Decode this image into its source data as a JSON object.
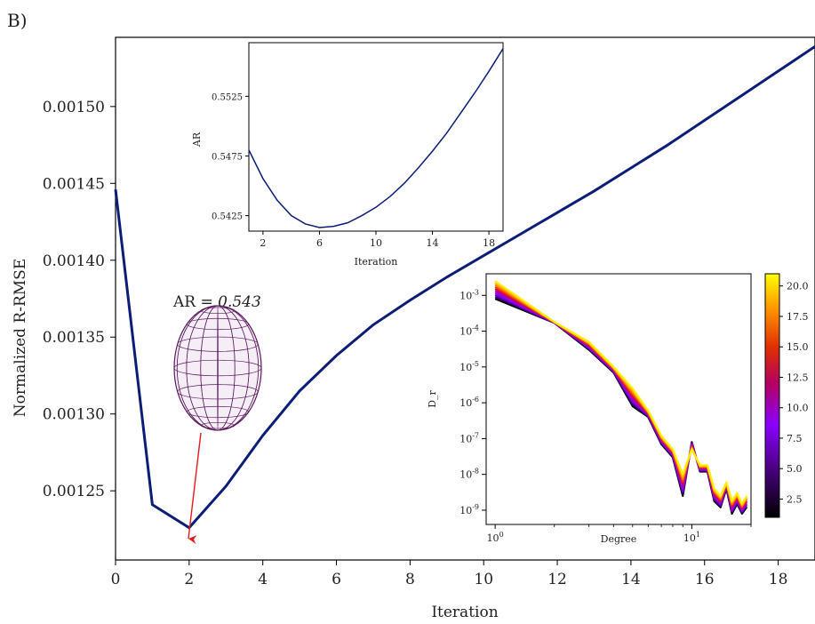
{
  "panel_label": "B)",
  "annotation": {
    "prefix": "AR = ",
    "value": "0.543"
  },
  "colors": {
    "main_line": "#0c1d78",
    "arrow": "#e41a1c",
    "ellipsoid": "#5a1a5e"
  },
  "chart_data": [
    {
      "id": "main",
      "type": "line",
      "xlabel": "Iteration",
      "ylabel": "Normalized R-RMSE",
      "xlim": [
        0,
        19
      ],
      "ylim": [
        0.001205,
        0.001545
      ],
      "xticks": [
        "0",
        "2",
        "4",
        "6",
        "8",
        "10",
        "12",
        "14",
        "16",
        "18"
      ],
      "yticks": [
        "0.00125",
        "0.00130",
        "0.00135",
        "0.00140",
        "0.00145",
        "0.00150"
      ],
      "grid": false,
      "x": [
        0,
        1,
        2,
        3,
        4,
        5,
        6,
        7,
        8,
        9,
        10,
        11,
        12,
        13,
        14,
        15,
        16,
        17,
        18,
        19
      ],
      "y": [
        0.001446,
        0.001241,
        0.001226,
        0.001253,
        0.001286,
        0.001315,
        0.001338,
        0.001358,
        0.001374,
        0.001389,
        0.001403,
        0.001417,
        0.001431,
        0.001445,
        0.00146,
        0.001475,
        0.001491,
        0.001507,
        0.001523,
        0.001539
      ]
    },
    {
      "id": "inset_ar",
      "type": "line",
      "xlabel": "Iteration",
      "ylabel": "AR",
      "xlim": [
        1,
        19
      ],
      "ylim": [
        0.5412,
        0.557
      ],
      "xticks": [
        "2",
        "6",
        "10",
        "14",
        "18"
      ],
      "yticks": [
        "0.5425",
        "0.5475",
        "0.5525"
      ],
      "grid": false,
      "x": [
        1,
        2,
        3,
        4,
        5,
        6,
        7,
        8,
        9,
        10,
        11,
        12,
        13,
        14,
        15,
        16,
        17,
        18,
        19
      ],
      "y": [
        0.548,
        0.5456,
        0.5438,
        0.5425,
        0.5418,
        0.5415,
        0.5416,
        0.5419,
        0.5425,
        0.5432,
        0.5441,
        0.5452,
        0.5465,
        0.5479,
        0.5494,
        0.5511,
        0.5528,
        0.5546,
        0.5565
      ]
    },
    {
      "id": "inset_spectrum",
      "type": "line",
      "xlabel": "Degree",
      "ylabel": "D_r",
      "xscale": "log",
      "yscale": "log",
      "xlim": [
        0.9,
        20
      ],
      "ylim": [
        4e-10,
        0.004
      ],
      "xticks": [
        "10^0",
        "10^1"
      ],
      "yticks": [
        "10^-9",
        "10^-8",
        "10^-7",
        "10^-6",
        "10^-5",
        "10^-4",
        "10^-3"
      ],
      "degrees": [
        1,
        2,
        3,
        4,
        5,
        6,
        7,
        8,
        9,
        10,
        11,
        12,
        13,
        14,
        15,
        16,
        17,
        18,
        19
      ],
      "series_low": [
        0.0008,
        0.00017,
        3e-05,
        7e-06,
        8e-07,
        4e-07,
        7e-08,
        3e-08,
        2.5e-09,
        8e-08,
        1.2e-08,
        1.2e-08,
        1.8e-09,
        1.2e-09,
        4e-09,
        8e-10,
        1.5e-09,
        8e-10,
        1.2e-09
      ],
      "series_high": [
        0.0025,
        0.00018,
        5e-05,
        1e-05,
        2.5e-06,
        6e-07,
        1.2e-07,
        5e-08,
        1e-08,
        5e-08,
        1.8e-08,
        1.8e-08,
        4e-09,
        2.5e-09,
        6e-09,
        1.8e-09,
        3e-09,
        1.5e-09,
        2.5e-09
      ]
    },
    {
      "id": "colorbar",
      "type": "heatmap",
      "colormap": "gnuplot",
      "range": [
        1,
        21
      ],
      "ticks": [
        "2.5",
        "5.0",
        "7.5",
        "10.0",
        "12.5",
        "15.0",
        "17.5",
        "20.0"
      ]
    }
  ]
}
